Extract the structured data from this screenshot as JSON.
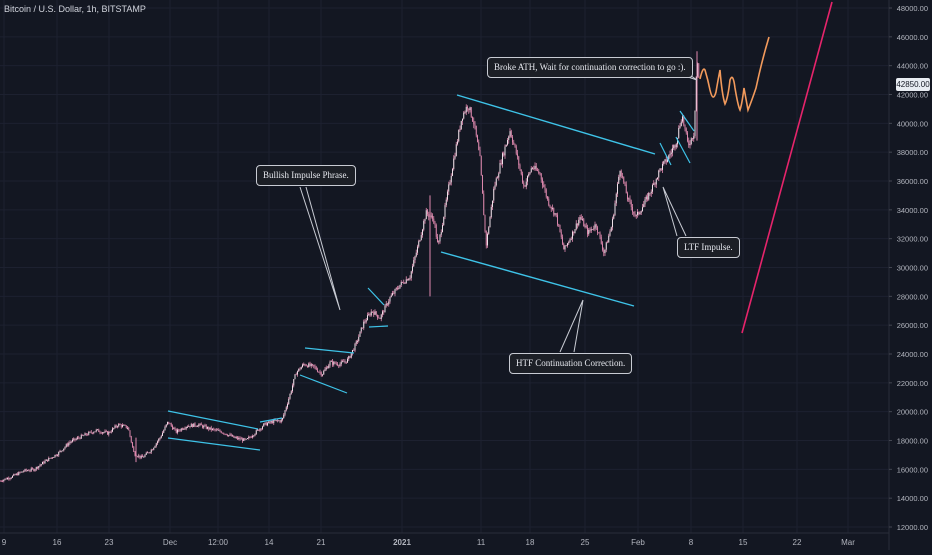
{
  "title": "Bitcoin / U.S. Dollar, 1h, BITSTAMP",
  "chart_data": {
    "type": "candlestick",
    "symbol": "Bitcoin / U.S. Dollar",
    "interval": "1h",
    "exchange": "BITSTAMP",
    "x_ticks": [
      "9",
      "16",
      "23",
      "Dec",
      "12:00",
      "14",
      "21",
      "2021",
      "11",
      "18",
      "25",
      "Feb",
      "8",
      "15",
      "22",
      "Mar"
    ],
    "y_ticks": [
      12000,
      14000,
      16000,
      18000,
      20000,
      22000,
      24000,
      26000,
      28000,
      30000,
      32000,
      34000,
      36000,
      38000,
      40000,
      42000,
      44000,
      46000,
      48000
    ],
    "y_ticks_labels": [
      "12000.00",
      "14000.00",
      "16000.00",
      "18000.00",
      "20000.00",
      "22000.00",
      "24000.00",
      "26000.00",
      "28000.00",
      "30000.00",
      "32000.00",
      "34000.00",
      "36000.00",
      "38000.00",
      "40000.00",
      "42000.00",
      "44000.00",
      "46000.00",
      "48000.00"
    ],
    "ylim": [
      11900,
      48500
    ],
    "last_price": 42850.0,
    "last_price_label": "42850.00",
    "price_path": [
      {
        "t": 0,
        "p": 15200
      },
      {
        "t": 12,
        "p": 15500
      },
      {
        "t": 24,
        "p": 15900
      },
      {
        "t": 34,
        "p": 16000
      },
      {
        "t": 46,
        "p": 16600
      },
      {
        "t": 58,
        "p": 17100
      },
      {
        "t": 70,
        "p": 17900
      },
      {
        "t": 82,
        "p": 18300
      },
      {
        "t": 96,
        "p": 18700
      },
      {
        "t": 108,
        "p": 18500
      },
      {
        "t": 118,
        "p": 19100
      },
      {
        "t": 128,
        "p": 18900
      },
      {
        "t": 134,
        "p": 17100
      },
      {
        "t": 142,
        "p": 16800
      },
      {
        "t": 152,
        "p": 17400
      },
      {
        "t": 160,
        "p": 18200
      },
      {
        "t": 168,
        "p": 19300
      },
      {
        "t": 176,
        "p": 18600
      },
      {
        "t": 186,
        "p": 19000
      },
      {
        "t": 198,
        "p": 19100
      },
      {
        "t": 210,
        "p": 18800
      },
      {
        "t": 222,
        "p": 18600
      },
      {
        "t": 234,
        "p": 18200
      },
      {
        "t": 246,
        "p": 18000
      },
      {
        "t": 256,
        "p": 18600
      },
      {
        "t": 264,
        "p": 19100
      },
      {
        "t": 272,
        "p": 19300
      },
      {
        "t": 282,
        "p": 19400
      },
      {
        "t": 290,
        "p": 21200
      },
      {
        "t": 296,
        "p": 22700
      },
      {
        "t": 304,
        "p": 23300
      },
      {
        "t": 314,
        "p": 23100
      },
      {
        "t": 322,
        "p": 22600
      },
      {
        "t": 330,
        "p": 23400
      },
      {
        "t": 340,
        "p": 23300
      },
      {
        "t": 348,
        "p": 23600
      },
      {
        "t": 356,
        "p": 24700
      },
      {
        "t": 364,
        "p": 26200
      },
      {
        "t": 372,
        "p": 27000
      },
      {
        "t": 380,
        "p": 26500
      },
      {
        "t": 390,
        "p": 27900
      },
      {
        "t": 400,
        "p": 28800
      },
      {
        "t": 410,
        "p": 29400
      },
      {
        "t": 418,
        "p": 31500
      },
      {
        "t": 426,
        "p": 33800
      },
      {
        "t": 434,
        "p": 33300
      },
      {
        "t": 438,
        "p": 31400
      },
      {
        "t": 446,
        "p": 34500
      },
      {
        "t": 454,
        "p": 37600
      },
      {
        "t": 462,
        "p": 40500
      },
      {
        "t": 468,
        "p": 41300
      },
      {
        "t": 474,
        "p": 40000
      },
      {
        "t": 480,
        "p": 37500
      },
      {
        "t": 486,
        "p": 31500
      },
      {
        "t": 494,
        "p": 35500
      },
      {
        "t": 502,
        "p": 37600
      },
      {
        "t": 510,
        "p": 39500
      },
      {
        "t": 516,
        "p": 38000
      },
      {
        "t": 524,
        "p": 35600
      },
      {
        "t": 532,
        "p": 37000
      },
      {
        "t": 540,
        "p": 36500
      },
      {
        "t": 548,
        "p": 34600
      },
      {
        "t": 556,
        "p": 33600
      },
      {
        "t": 564,
        "p": 31200
      },
      {
        "t": 572,
        "p": 32300
      },
      {
        "t": 580,
        "p": 33500
      },
      {
        "t": 588,
        "p": 32400
      },
      {
        "t": 596,
        "p": 33000
      },
      {
        "t": 604,
        "p": 31000
      },
      {
        "t": 612,
        "p": 33000
      },
      {
        "t": 620,
        "p": 36900
      },
      {
        "t": 628,
        "p": 34700
      },
      {
        "t": 636,
        "p": 33500
      },
      {
        "t": 644,
        "p": 34400
      },
      {
        "t": 652,
        "p": 35500
      },
      {
        "t": 660,
        "p": 36800
      },
      {
        "t": 668,
        "p": 37600
      },
      {
        "t": 676,
        "p": 38700
      },
      {
        "t": 682,
        "p": 40600
      },
      {
        "t": 688,
        "p": 38500
      },
      {
        "t": 694,
        "p": 39300
      },
      {
        "t": 697,
        "p": 44600
      },
      {
        "t": 699,
        "p": 42850
      }
    ],
    "price_path_units": "t: time index on a 0-932 scale of the x axis (Nov 9 at 0, Mar at ~848); p: price in USD",
    "annotations": [
      {
        "label": "Bullish Impulse Phrase."
      },
      {
        "label": "Broke ATH, Wait for continuation correction to go :)."
      },
      {
        "label": "LTF Impulse."
      },
      {
        "label": "HTF Continuation Correction."
      }
    ]
  },
  "colors": {
    "background": "#131722",
    "candle": "#e08ab0",
    "candle_body": "#f3eef2",
    "trendline": "#3ec3e8",
    "projection": "#f29a5c",
    "target_line": "#e6246b",
    "grid": "#1d2130",
    "axis_text": "#b2b5be"
  }
}
